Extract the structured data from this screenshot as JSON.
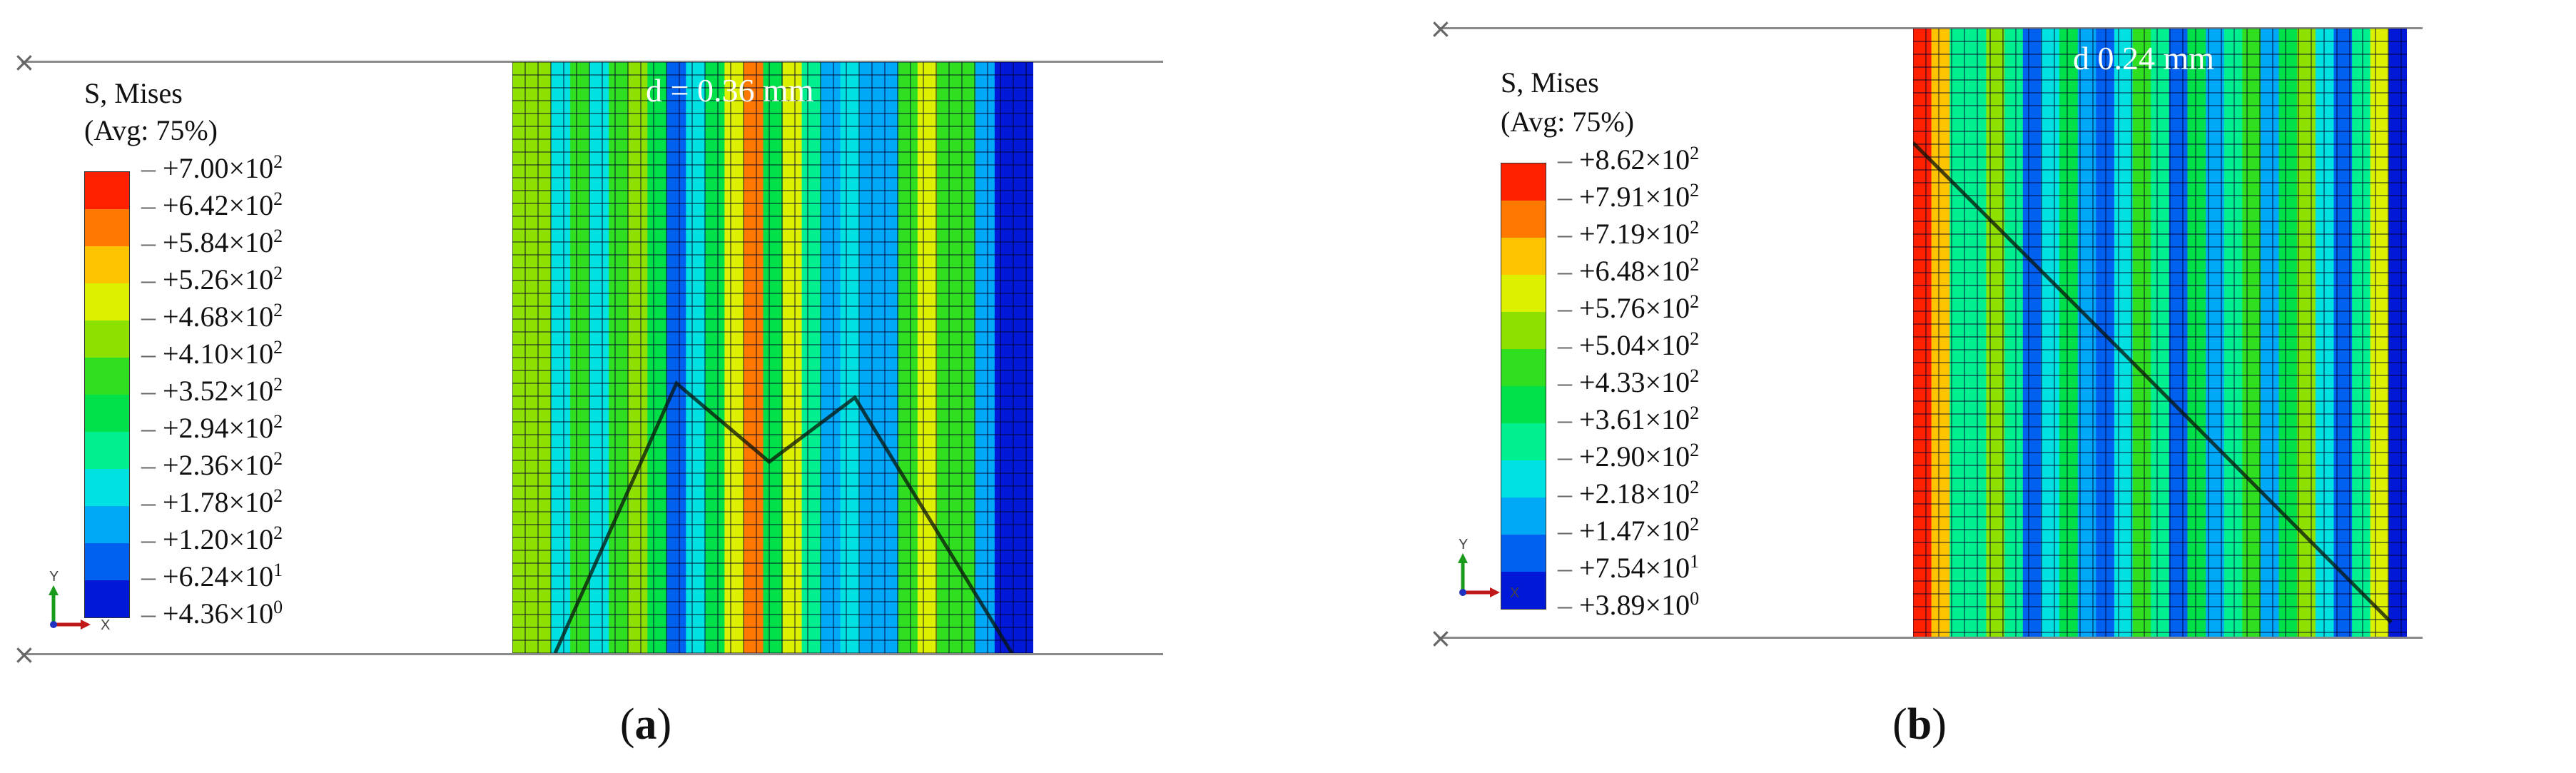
{
  "colors": [
    "#0018d8",
    "#0060f0",
    "#00a8f8",
    "#00e2e2",
    "#00f090",
    "#00e048",
    "#30e020",
    "#8ee000",
    "#ddf000",
    "#ffc400",
    "#ff7800",
    "#ff2000"
  ],
  "panels": [
    {
      "legend_title": "S, Mises",
      "legend_avg": "(Avg: 75%)",
      "ticks": [
        {
          "m": "+7.00",
          "e": "2"
        },
        {
          "m": "+6.42",
          "e": "2"
        },
        {
          "m": "+5.84",
          "e": "2"
        },
        {
          "m": "+5.26",
          "e": "2"
        },
        {
          "m": "+4.68",
          "e": "2"
        },
        {
          "m": "+4.10",
          "e": "2"
        },
        {
          "m": "+3.52",
          "e": "2"
        },
        {
          "m": "+2.94",
          "e": "2"
        },
        {
          "m": "+2.36",
          "e": "2"
        },
        {
          "m": "+1.78",
          "e": "2"
        },
        {
          "m": "+1.20",
          "e": "2"
        },
        {
          "m": "+6.24",
          "e": "1"
        },
        {
          "m": "+4.36",
          "e": "0"
        }
      ],
      "d_label": "d = 0.36 mm",
      "axis_y": "Y",
      "axis_x": "X",
      "caption_letter": "a",
      "bands": [
        7,
        7,
        3,
        6,
        3,
        6,
        7,
        5,
        1,
        3,
        5,
        8,
        10,
        5,
        8,
        4,
        2,
        3,
        2,
        2,
        6,
        8,
        6,
        6,
        2,
        0,
        0
      ]
    },
    {
      "legend_title": "S, Mises",
      "legend_avg": "(Avg: 75%)",
      "ticks": [
        {
          "m": "+8.62",
          "e": "2"
        },
        {
          "m": "+7.91",
          "e": "2"
        },
        {
          "m": "+7.19",
          "e": "2"
        },
        {
          "m": "+6.48",
          "e": "2"
        },
        {
          "m": "+5.76",
          "e": "2"
        },
        {
          "m": "+5.04",
          "e": "2"
        },
        {
          "m": "+4.33",
          "e": "2"
        },
        {
          "m": "+3.61",
          "e": "2"
        },
        {
          "m": "+2.90",
          "e": "2"
        },
        {
          "m": "+2.18",
          "e": "2"
        },
        {
          "m": "+1.47",
          "e": "2"
        },
        {
          "m": "+7.54",
          "e": "1"
        },
        {
          "m": "+3.89",
          "e": "0"
        }
      ],
      "d_label": "d   0.24 mm",
      "axis_y": "Y",
      "axis_x": "X",
      "caption_letter": "b",
      "bands": [
        11,
        9,
        4,
        4,
        7,
        4,
        1,
        3,
        5,
        2,
        1,
        3,
        6,
        4,
        1,
        5,
        2,
        4,
        6,
        2,
        5,
        7,
        3,
        1,
        4,
        8,
        0
      ]
    }
  ]
}
